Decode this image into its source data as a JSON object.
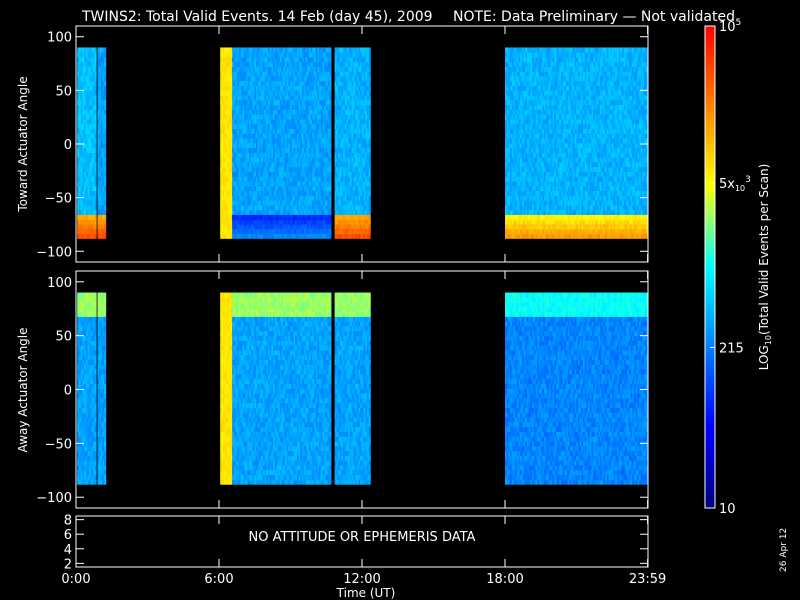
{
  "title": {
    "main": "TWINS2: Total Valid Events. 14 Feb (day  45), 2009",
    "note": "NOTE: Data Preliminary — Not validated",
    "note_color": "#ff2020"
  },
  "footer": {
    "date_stamp": "26 Apr 12",
    "no_data_message": "NO ATTITUDE OR EPHEMERIS DATA"
  },
  "colors": {
    "background": "#000000",
    "axis": "#ffffff"
  },
  "chart_data": [
    {
      "type": "heatmap",
      "panel": "toward",
      "ylabel": "Toward Actuator Angle",
      "ylim": [
        -110,
        110
      ],
      "yticks": [
        100,
        50,
        0,
        -50,
        -100
      ],
      "ytick_labels": [
        "100",
        "50",
        "0",
        "−50",
        "−100"
      ],
      "xlim": [
        0,
        24
      ],
      "xticks": [
        0,
        6,
        12,
        18,
        23.983
      ],
      "data_ylim": [
        -88,
        90
      ],
      "data_segments": [
        {
          "x_start": 0.05,
          "x_end": 0.85,
          "base_level": 0.42,
          "bottom_level": 0.9
        },
        {
          "x_start": 0.9,
          "x_end": 1.25,
          "base_level": 0.38,
          "bottom_level": 0.9
        },
        {
          "x_start": 6.05,
          "x_end": 10.7,
          "base_level": 0.38,
          "bottom_level": 0.34,
          "left_band_level": 0.7
        },
        {
          "x_start": 10.85,
          "x_end": 12.35,
          "base_level": 0.4,
          "bottom_level": 0.9
        },
        {
          "x_start": 18.0,
          "x_end": 23.98,
          "base_level": 0.4,
          "bottom_level": 0.8
        }
      ]
    },
    {
      "type": "heatmap",
      "panel": "away",
      "ylabel": "Away Actuator Angle",
      "ylim": [
        -110,
        110
      ],
      "yticks": [
        100,
        50,
        0,
        -50,
        -100
      ],
      "ytick_labels": [
        "100",
        "50",
        "0",
        "−50",
        "−100"
      ],
      "xlim": [
        0,
        24
      ],
      "xticks": [
        0,
        6,
        12,
        18,
        23.983
      ],
      "data_ylim": [
        -88,
        90
      ],
      "data_segments": [
        {
          "x_start": 0.05,
          "x_end": 0.85,
          "base_level": 0.38,
          "top_level": 0.6
        },
        {
          "x_start": 0.9,
          "x_end": 1.25,
          "base_level": 0.38,
          "top_level": 0.6
        },
        {
          "x_start": 6.05,
          "x_end": 10.7,
          "base_level": 0.38,
          "top_level": 0.6,
          "left_band_level": 0.7
        },
        {
          "x_start": 10.85,
          "x_end": 12.35,
          "base_level": 0.38,
          "top_level": 0.6
        },
        {
          "x_start": 18.0,
          "x_end": 23.98,
          "base_level": 0.34,
          "top_level": 0.5
        }
      ]
    },
    {
      "type": "line",
      "panel": "attitude",
      "ylim": [
        1.5,
        8.5
      ],
      "yticks": [
        8,
        6,
        4,
        2
      ],
      "ytick_labels": [
        "8",
        "6",
        "4",
        "2"
      ],
      "xlim": [
        0,
        24
      ],
      "xticks": [
        0,
        6,
        12,
        18,
        23.983
      ],
      "xtick_labels": [
        "0:00",
        "6:00",
        "12:00",
        "18:00",
        "23:59"
      ],
      "xlabel": "Time (UT)",
      "series": []
    }
  ],
  "colorbar": {
    "label_prefix": "LOG",
    "label_sub": "10",
    "label_suffix": "(Total Valid  Events per Scan)",
    "scale": "log",
    "min": 10,
    "max": 100000,
    "ticks": [
      {
        "value": 100000,
        "base": "10",
        "exp": "5",
        "sub": ""
      },
      {
        "value": 5000,
        "base": "5x",
        "exp": "3",
        "sub": "10"
      },
      {
        "value": 215,
        "base": "215",
        "exp": "",
        "sub": ""
      },
      {
        "value": 10,
        "base": "10",
        "exp": "",
        "sub": ""
      }
    ],
    "colors": [
      "#000080",
      "#0000ff",
      "#0080ff",
      "#00ffff",
      "#ffff00",
      "#ff8000",
      "#ff0000"
    ]
  }
}
